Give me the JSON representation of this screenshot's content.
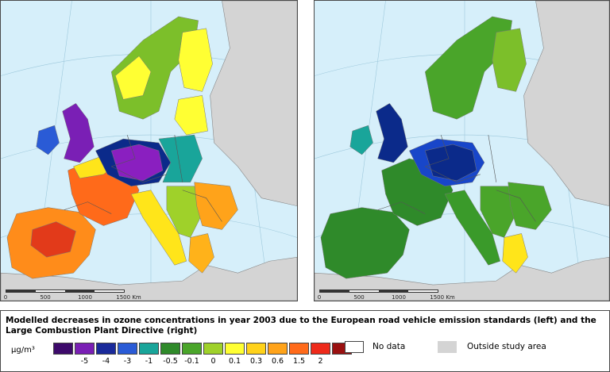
{
  "maps": [
    {
      "id": "left",
      "scale_bar": {
        "ticks": [
          "0",
          "500",
          "1000",
          "1500 Km"
        ]
      },
      "regions": [
        {
          "name": "iberia",
          "color": "#ff8c1a"
        },
        {
          "name": "iberia-core",
          "color": "#e23a1a"
        },
        {
          "name": "france",
          "color": "#ff6a1a"
        },
        {
          "name": "france-north",
          "color": "#ffe51a"
        },
        {
          "name": "uk",
          "color": "#7a1fb5"
        },
        {
          "name": "ireland",
          "color": "#2a5bd6"
        },
        {
          "name": "benelux-germany",
          "color": "#0b2a8a"
        },
        {
          "name": "central-europe",
          "color": "#8a1fc0"
        },
        {
          "name": "poland",
          "color": "#19a59a"
        },
        {
          "name": "baltics",
          "color": "#ffff33"
        },
        {
          "name": "scandinavia",
          "color": "#7cbf2a"
        },
        {
          "name": "norway-south",
          "color": "#ffff33"
        },
        {
          "name": "finland",
          "color": "#ffff33"
        },
        {
          "name": "italy",
          "color": "#ffe51a"
        },
        {
          "name": "balkans",
          "color": "#9fd12a"
        },
        {
          "name": "romania",
          "color": "#ffa31a"
        },
        {
          "name": "greece",
          "color": "#ffb21a"
        }
      ]
    },
    {
      "id": "right",
      "scale_bar": {
        "ticks": [
          "0",
          "500",
          "1000",
          "1500 Km"
        ]
      },
      "regions": [
        {
          "name": "iberia",
          "color": "#2f8a2a"
        },
        {
          "name": "france",
          "color": "#2f8a2a"
        },
        {
          "name": "uk",
          "color": "#0b2a8a"
        },
        {
          "name": "ireland",
          "color": "#19a59a"
        },
        {
          "name": "benelux-germany",
          "color": "#1846c9"
        },
        {
          "name": "central-europe",
          "color": "#0b2a8a"
        },
        {
          "name": "scandinavia",
          "color": "#4aa52a"
        },
        {
          "name": "finland",
          "color": "#7cbf2a"
        },
        {
          "name": "italy",
          "color": "#3a9a2a"
        },
        {
          "name": "balkans",
          "color": "#4aa52a"
        },
        {
          "name": "romania",
          "color": "#4aa52a"
        },
        {
          "name": "greece",
          "color": "#ffe51a"
        }
      ]
    }
  ],
  "legend": {
    "title": "Modelled decreases in ozone concentrations in year 2003 due to the European road vehicle emission standards (left) and the Large Combustion Plant Directive (right)",
    "unit": "µg/m³",
    "colors": [
      "#3d0a6b",
      "#7a1fb5",
      "#1a2a9a",
      "#2a5bd6",
      "#19a59a",
      "#2f8a2a",
      "#4aa52a",
      "#9fd12a",
      "#ffff33",
      "#ffd21a",
      "#ffa31a",
      "#ff6a1a",
      "#ee2a1a",
      "#9a1010"
    ],
    "labels": [
      "-5",
      "-4",
      "-3",
      "-1",
      "-0.5",
      "-0.1",
      "0",
      "0.1",
      "0.3",
      "0.6",
      "1.5",
      "2"
    ],
    "no_data_label": "No data",
    "outside_label": "Outside study area"
  }
}
